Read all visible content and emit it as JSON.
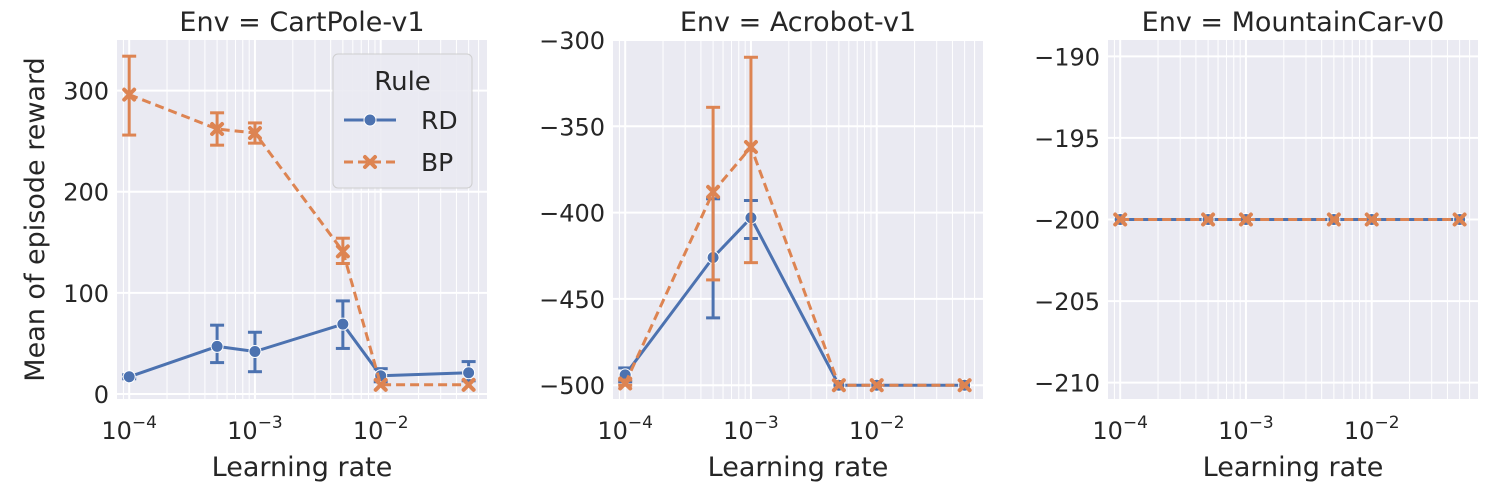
{
  "colors": {
    "background": "#eaeaf2",
    "grid": "#ffffff",
    "RD": "#4c72b0",
    "BP": "#dd8452",
    "text": "#262626"
  },
  "legend": {
    "title": "Rule",
    "placement": "top-right",
    "entries": [
      "RD",
      "BP"
    ]
  },
  "chart_data": [
    {
      "type": "line",
      "title": "Env = CartPole-v1",
      "xlabel": "Learning rate",
      "ylabel": "Mean of episode reward",
      "xscale": "log",
      "xlim": [
        8e-05,
        0.07
      ],
      "ylim": [
        -5,
        350
      ],
      "grid": true,
      "x": [
        0.0001,
        0.0005,
        0.001,
        0.005,
        0.01,
        0.05
      ],
      "xticks": [
        0.0001,
        0.001,
        0.01
      ],
      "xtick_labels": [
        "10−4",
        "10−3",
        "10−2"
      ],
      "yticks": [
        0,
        100,
        200,
        300
      ],
      "ytick_labels": [
        "0",
        "100",
        "200",
        "300"
      ],
      "series": [
        {
          "name": "RD",
          "values": [
            17,
            47,
            42,
            69,
            18,
            21
          ],
          "err_low": [
            15,
            31,
            22,
            45,
            12,
            13
          ],
          "err_high": [
            19,
            68,
            61,
            92,
            25,
            32
          ]
        },
        {
          "name": "BP",
          "values": [
            296,
            262,
            258,
            141,
            9,
            9
          ],
          "err_low": [
            256,
            246,
            248,
            129,
            9,
            9
          ],
          "err_high": [
            334,
            278,
            268,
            154,
            9,
            9
          ]
        }
      ]
    },
    {
      "type": "line",
      "title": "Env = Acrobot-v1",
      "xlabel": "Learning rate",
      "ylabel": "",
      "xscale": "log",
      "xlim": [
        8e-05,
        0.07
      ],
      "ylim": [
        -508,
        -300
      ],
      "grid": true,
      "x": [
        0.0001,
        0.0005,
        0.001,
        0.005,
        0.01,
        0.05
      ],
      "xticks": [
        0.0001,
        0.001,
        0.01
      ],
      "xtick_labels": [
        "10−4",
        "10−3",
        "10−2"
      ],
      "yticks": [
        -500,
        -450,
        -400,
        -350,
        -300
      ],
      "ytick_labels": [
        "−500",
        "−450",
        "−400",
        "−350",
        "−300"
      ],
      "series": [
        {
          "name": "RD",
          "values": [
            -494,
            -426,
            -403,
            -500,
            -500,
            -500
          ],
          "err_low": [
            -498,
            -461,
            -415,
            -500,
            -500,
            -500
          ],
          "err_high": [
            -490,
            -392,
            -393,
            -500,
            -500,
            -500
          ]
        },
        {
          "name": "BP",
          "values": [
            -499,
            -388,
            -362,
            -500,
            -500,
            -500
          ],
          "err_low": [
            -500,
            -439,
            -429,
            -500,
            -500,
            -500
          ],
          "err_high": [
            -497,
            -339,
            -310,
            -500,
            -500,
            -500
          ]
        }
      ]
    },
    {
      "type": "line",
      "title": "Env = MountainCar-v0",
      "xlabel": "Learning rate",
      "ylabel": "",
      "xscale": "log",
      "xlim": [
        8e-05,
        0.07
      ],
      "ylim": [
        -211,
        -189
      ],
      "grid": true,
      "x": [
        0.0001,
        0.0005,
        0.001,
        0.005,
        0.01,
        0.05
      ],
      "xticks": [
        0.0001,
        0.001,
        0.01
      ],
      "xtick_labels": [
        "10−4",
        "10−3",
        "10−2"
      ],
      "yticks": [
        -210,
        -205,
        -200,
        -195,
        -190
      ],
      "ytick_labels": [
        "−210",
        "−205",
        "−200",
        "−195",
        "−190"
      ],
      "series": [
        {
          "name": "RD",
          "values": [
            -200,
            -200,
            -200,
            -200,
            -200,
            -200
          ],
          "err_low": [
            -200,
            -200,
            -200,
            -200,
            -200,
            -200
          ],
          "err_high": [
            -200,
            -200,
            -200,
            -200,
            -200,
            -200
          ]
        },
        {
          "name": "BP",
          "values": [
            -200,
            -200,
            -200,
            -200,
            -200,
            -200
          ],
          "err_low": [
            -200,
            -200,
            -200,
            -200,
            -200,
            -200
          ],
          "err_high": [
            -200,
            -200,
            -200,
            -200,
            -200,
            -200
          ]
        }
      ]
    }
  ]
}
